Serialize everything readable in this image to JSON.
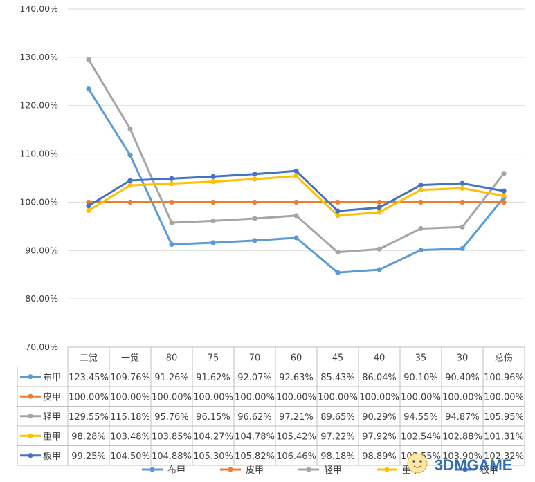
{
  "chart_data": {
    "type": "line",
    "categories": [
      "二觉",
      "一觉",
      "80",
      "75",
      "70",
      "60",
      "45",
      "40",
      "35",
      "30",
      "总伤"
    ],
    "ylim": [
      70,
      140
    ],
    "yticks": [
      "70.00%",
      "80.00%",
      "90.00%",
      "100.00%",
      "110.00%",
      "120.00%",
      "130.00%",
      "140.00%"
    ],
    "grid": true,
    "legend_position": "bottom",
    "data_table": true,
    "series": [
      {
        "name": "布甲",
        "color": "#5B9BD5",
        "values": [
          123.45,
          109.76,
          91.26,
          91.62,
          92.07,
          92.63,
          85.43,
          86.04,
          90.1,
          90.4,
          100.96
        ],
        "labels": [
          "123.45%",
          "109.76%",
          "91.26%",
          "91.62%",
          "92.07%",
          "92.63%",
          "85.43%",
          "86.04%",
          "90.10%",
          "90.40%",
          "100.96%"
        ]
      },
      {
        "name": "皮甲",
        "color": "#ED7D31",
        "values": [
          100,
          100,
          100,
          100,
          100,
          100,
          100,
          100,
          100,
          100,
          100
        ],
        "labels": [
          "100.00%",
          "100.00%",
          "100.00%",
          "100.00%",
          "100.00%",
          "100.00%",
          "100.00%",
          "100.00%",
          "100.00%",
          "100.00%",
          "100.00%"
        ]
      },
      {
        "name": "轻甲",
        "color": "#A5A5A5",
        "values": [
          129.55,
          115.18,
          95.76,
          96.15,
          96.62,
          97.21,
          89.65,
          90.29,
          94.55,
          94.87,
          105.95
        ],
        "labels": [
          "129.55%",
          "115.18%",
          "95.76%",
          "96.15%",
          "96.62%",
          "97.21%",
          "89.65%",
          "90.29%",
          "94.55%",
          "94.87%",
          "105.95%"
        ]
      },
      {
        "name": "重甲",
        "color": "#FFC000",
        "values": [
          98.28,
          103.48,
          103.85,
          104.27,
          104.78,
          105.42,
          97.22,
          97.92,
          102.54,
          102.88,
          101.31
        ],
        "labels": [
          "98.28%",
          "103.48%",
          "103.85%",
          "104.27%",
          "104.78%",
          "105.42%",
          "97.22%",
          "97.92%",
          "102.54%",
          "102.88%",
          "101.31%"
        ]
      },
      {
        "name": "板甲",
        "color": "#4472C4",
        "values": [
          99.25,
          104.5,
          104.88,
          105.3,
          105.82,
          106.46,
          98.18,
          98.89,
          103.55,
          103.9,
          102.32
        ],
        "labels": [
          "99.25%",
          "104.50%",
          "104.88%",
          "105.30%",
          "105.82%",
          "106.46%",
          "98.18%",
          "98.89%",
          "103.55%",
          "103.90%",
          "102.32%"
        ]
      }
    ]
  },
  "watermark": {
    "brand_text": "3DMGAME",
    "accent_color": "#2E6FB5"
  }
}
